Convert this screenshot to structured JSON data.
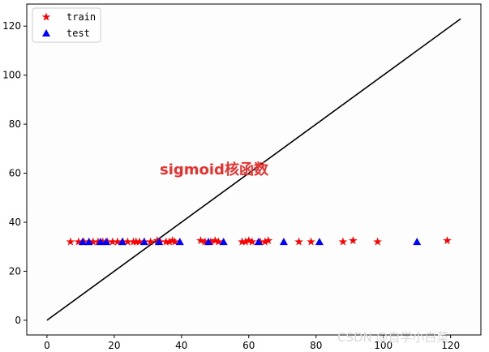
{
  "chart_data": {
    "type": "scatter",
    "annotation": "sigmoid核函数",
    "annotation_color": "#e8312f",
    "watermark": "CSDN @自学小白菜",
    "xlim": [
      -6,
      129
    ],
    "ylim": [
      -6,
      129
    ],
    "xticks": [
      0,
      20,
      40,
      60,
      80,
      100,
      120
    ],
    "yticks": [
      0,
      20,
      40,
      60,
      80,
      100,
      120
    ],
    "legend": "upper left",
    "series": [
      {
        "name": "train",
        "color": "#ff0000",
        "marker": "star",
        "x": [
          7,
          9.4,
          11,
          12.5,
          13.7,
          15.2,
          16.6,
          18,
          19.5,
          21,
          22.6,
          24,
          25.7,
          26.5,
          27.5,
          29,
          30.8,
          32.8,
          33.7,
          35.4,
          36.4,
          37.3,
          38,
          45.7,
          47,
          48.7,
          50,
          51,
          58,
          59,
          60,
          61,
          63.4,
          64.8,
          65.8,
          74.9,
          78.5,
          88,
          91,
          98.3,
          119
        ],
        "values": [
          32,
          32,
          32,
          32,
          32,
          32,
          32,
          32,
          32,
          32,
          32,
          32,
          32,
          32,
          32,
          32,
          32,
          32.5,
          32,
          32,
          32,
          32.5,
          32,
          32.5,
          32,
          32,
          32.5,
          32,
          32,
          32,
          32.5,
          32,
          32,
          32,
          32.5,
          32,
          32,
          32,
          32.5,
          32,
          32.5
        ]
      },
      {
        "name": "test",
        "color": "#0000ff",
        "marker": "triangle",
        "x": [
          10.6,
          12.5,
          15.9,
          17.6,
          22.4,
          28.9,
          33.3,
          39.5,
          48,
          52.5,
          62.9,
          70.4,
          81,
          110
        ],
        "values": [
          32,
          32,
          32,
          32,
          32,
          32,
          32,
          32,
          32,
          32,
          32,
          32,
          32,
          32
        ]
      }
    ],
    "lines": [
      {
        "color": "#000000",
        "x": [
          0,
          123
        ],
        "y": [
          0,
          123
        ]
      }
    ]
  }
}
